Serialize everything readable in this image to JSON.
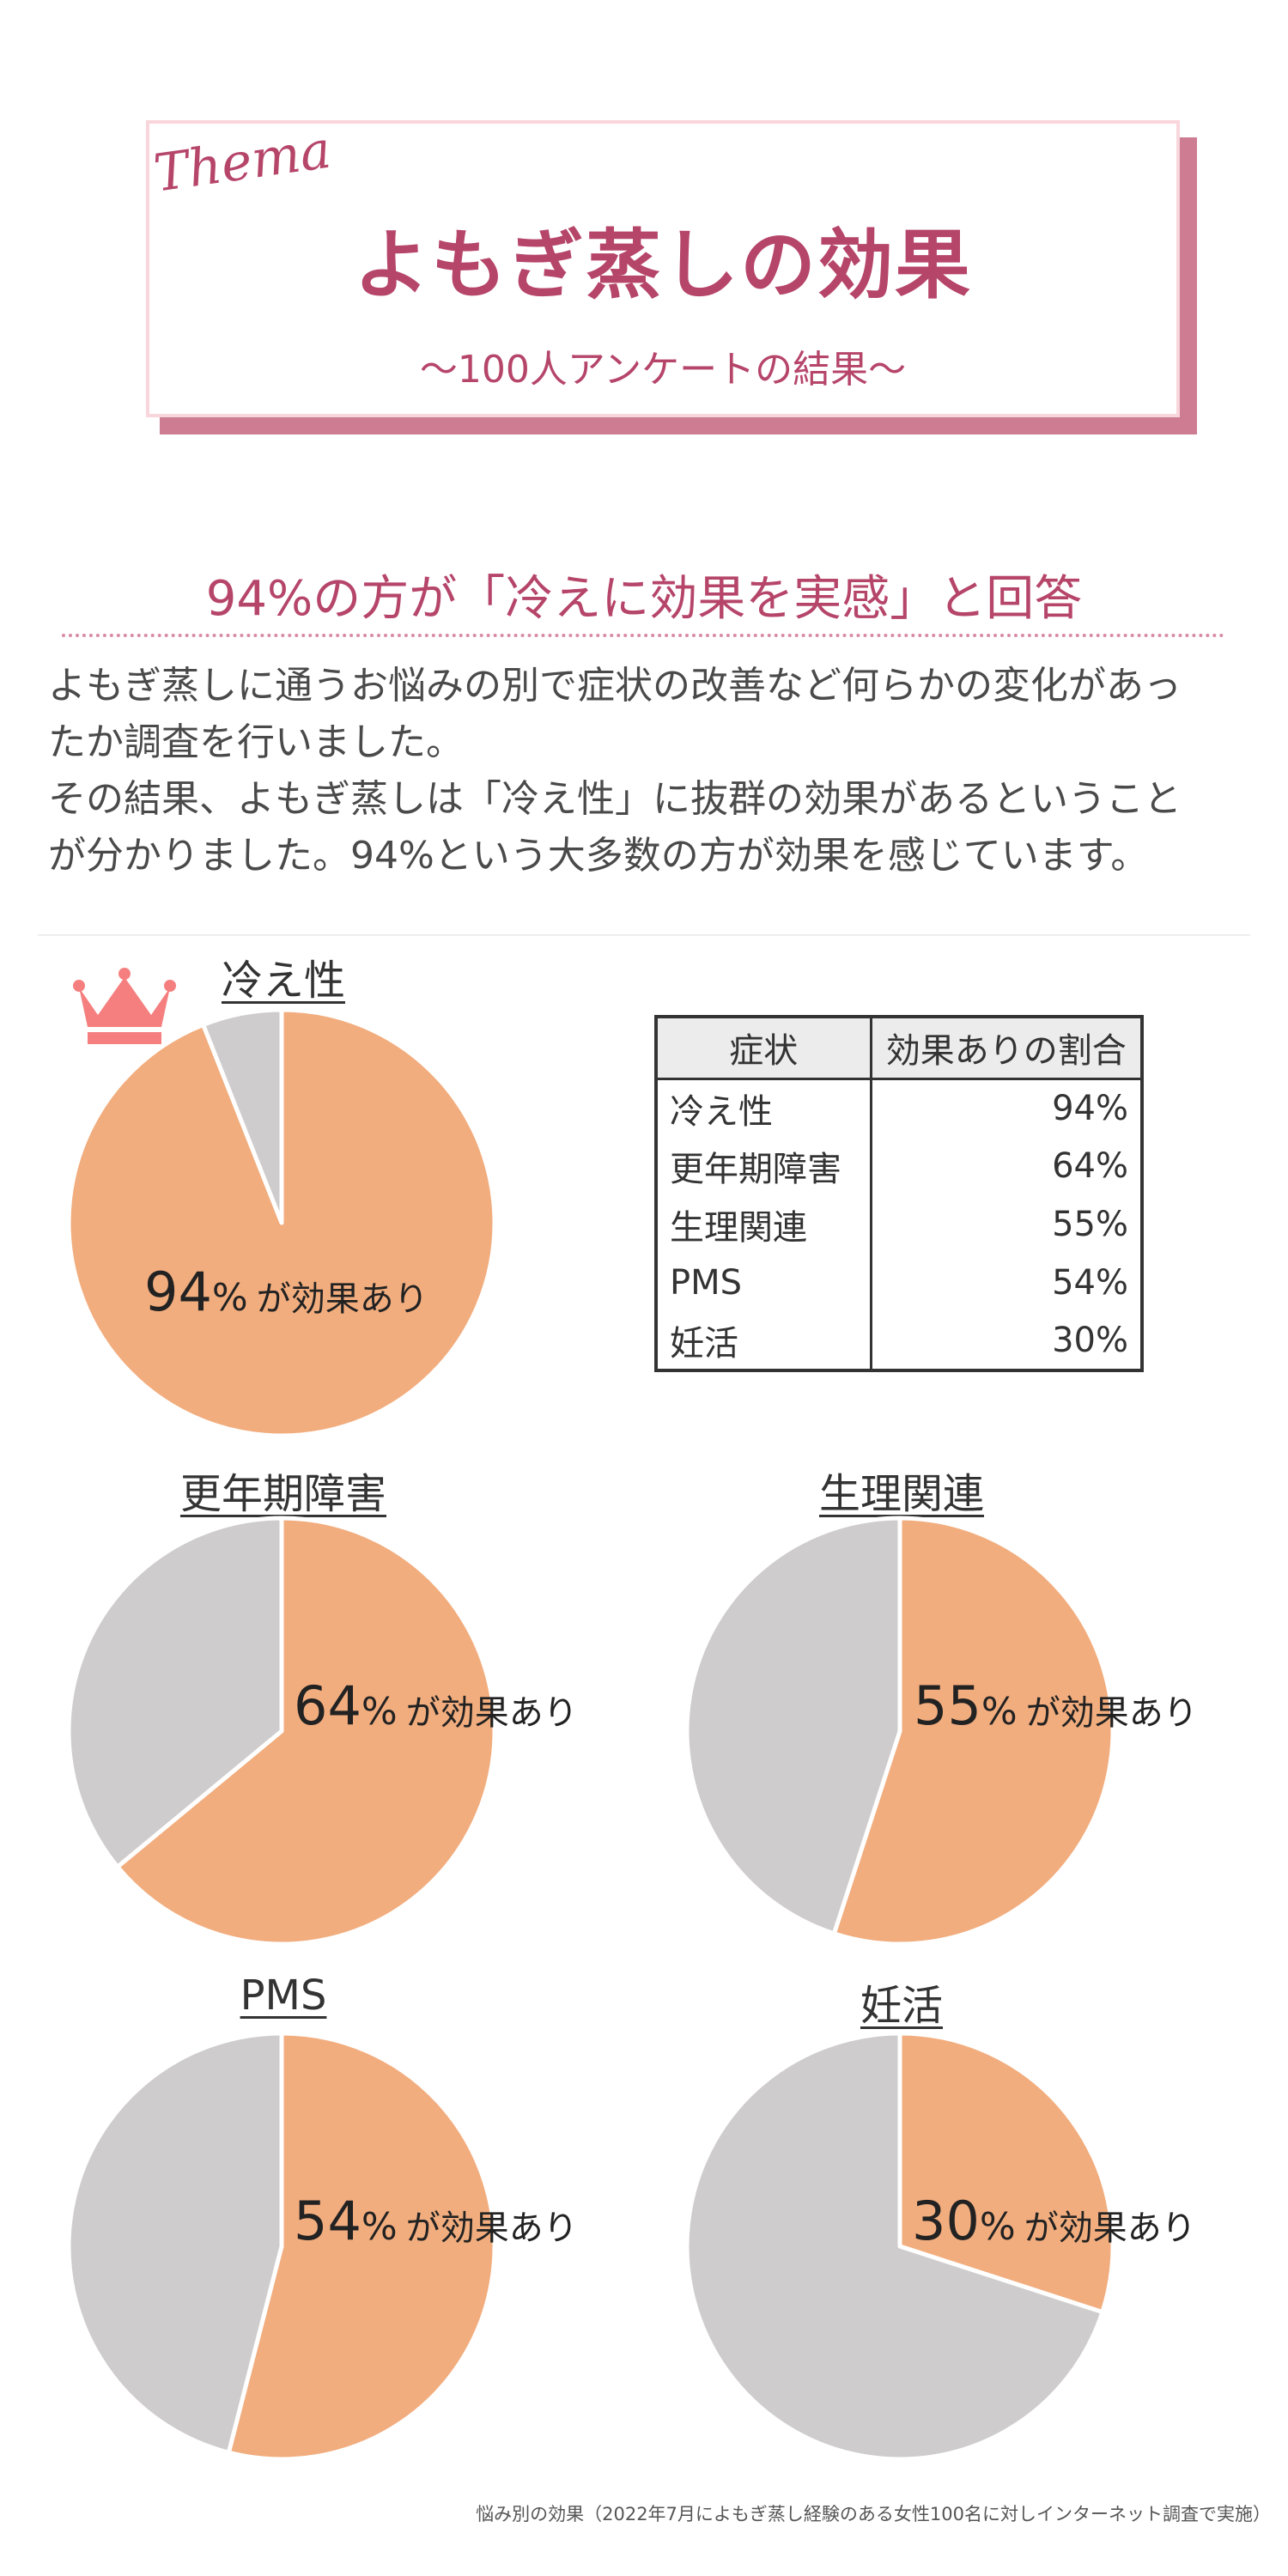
{
  "header": {
    "thema": "Thema",
    "title": "よもぎ蒸しの効果",
    "subtitle": "〜100人アンケートの結果〜"
  },
  "heading": "94%の方が「冷えに効果を実感」と回答",
  "paragraph": [
    "よもぎ蒸しに通うお悩みの別で症状の改善など何らかの変化があっ",
    "たか調査を行いました。",
    "その結果、よもぎ蒸しは「冷え性」に抜群の効果があるということ",
    "が分かりました。94%という大多数の方が効果を感じています。"
  ],
  "table": {
    "headers": [
      "症状",
      "効果ありの割合"
    ],
    "rows": [
      [
        "冷え性",
        "94%"
      ],
      [
        "更年期障害",
        "64%"
      ],
      [
        "生理関連",
        "55%"
      ],
      [
        "PMS",
        "54%"
      ],
      [
        "妊活",
        "30%"
      ]
    ]
  },
  "chart_data": [
    {
      "type": "pie",
      "title": "冷え性",
      "values": [
        94,
        6
      ],
      "categories": [
        "効果あり",
        ""
      ],
      "label_value": "94",
      "label_unit": "%",
      "label_text": "が効果あり",
      "colors": [
        "#f2ad7e",
        "#cfcccd"
      ],
      "crown": true
    },
    {
      "type": "pie",
      "title": "更年期障害",
      "values": [
        64,
        36
      ],
      "categories": [
        "効果あり",
        ""
      ],
      "label_value": "64",
      "label_unit": "%",
      "label_text": "が効果あり",
      "colors": [
        "#f2ad7e",
        "#cfcccd"
      ]
    },
    {
      "type": "pie",
      "title": "生理関連",
      "values": [
        55,
        45
      ],
      "categories": [
        "効果あり",
        ""
      ],
      "label_value": "55",
      "label_unit": "%",
      "label_text": "が効果あり",
      "colors": [
        "#f2ad7e",
        "#cfcccd"
      ]
    },
    {
      "type": "pie",
      "title": "PMS",
      "values": [
        54,
        46
      ],
      "categories": [
        "効果あり",
        ""
      ],
      "label_value": "54",
      "label_unit": "%",
      "label_text": "が効果あり",
      "colors": [
        "#f2ad7e",
        "#cfcccd"
      ]
    },
    {
      "type": "pie",
      "title": "妊活",
      "values": [
        30,
        70
      ],
      "categories": [
        "効果あり",
        ""
      ],
      "label_value": "30",
      "label_unit": "%",
      "label_text": "が効果あり",
      "colors": [
        "#f2ad7e",
        "#cfcccd"
      ]
    }
  ],
  "footnote": "悩み別の効果（2022年7月によもぎ蒸し経験のある女性100名に対しインターネット調査で実施）",
  "colors": {
    "accent": "#b6456a",
    "card_shadow": "#cd7c92",
    "crown": "#f57f7f"
  },
  "icons": {
    "crown": "crown-icon"
  }
}
